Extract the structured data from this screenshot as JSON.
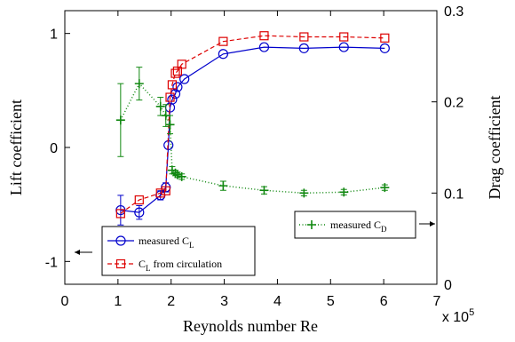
{
  "chart_data": {
    "type": "line",
    "xlabel": "Reynolds number Re",
    "ylabel_left": "Lift coefficient",
    "ylabel_right": "Drag coefficient",
    "x_multiplier_label": "x 10",
    "x_multiplier_exp": "5",
    "xlim": [
      0,
      7
    ],
    "ylim_left": [
      -1.2,
      1.2
    ],
    "ylim_right": [
      0,
      0.3
    ],
    "xticks": [
      "0",
      "1",
      "2",
      "3",
      "4",
      "5",
      "6",
      "7"
    ],
    "yticks_left": [
      "-1",
      "0",
      "1"
    ],
    "yticks_right": [
      "0",
      "0.1",
      "0.2",
      "0.3"
    ],
    "legend_left": {
      "entries": [
        {
          "prefix": "measured C",
          "sub": "L"
        },
        {
          "prefix": "C",
          "sub": "L",
          "suffix": " from circulation"
        }
      ]
    },
    "legend_right": {
      "entries": [
        {
          "prefix": "measured C",
          "sub": "D"
        }
      ]
    },
    "series": [
      {
        "name": "measured C_L",
        "axis": "left",
        "color": "#0000cc",
        "marker": "circle",
        "line": "solid",
        "x": [
          1.05,
          1.4,
          1.8,
          1.9,
          1.95,
          1.98,
          2.02,
          2.08,
          2.12,
          2.25,
          2.98,
          3.75,
          4.5,
          5.25,
          6.02
        ],
        "y": [
          -0.55,
          -0.57,
          -0.42,
          -0.35,
          0.02,
          0.35,
          0.42,
          0.47,
          0.53,
          0.6,
          0.82,
          0.88,
          0.87,
          0.88,
          0.87
        ],
        "yerr": [
          0.13,
          0.06,
          0.04,
          0.04,
          0,
          0,
          0,
          0,
          0,
          0,
          0,
          0,
          0,
          0,
          0
        ]
      },
      {
        "name": "C_L from circulation",
        "axis": "left",
        "color": "#dd0000",
        "marker": "square",
        "line": "dashed",
        "x": [
          1.05,
          1.4,
          1.8,
          1.9,
          1.98,
          2.02,
          2.08,
          2.12,
          2.2,
          2.98,
          3.75,
          4.5,
          5.25,
          6.02
        ],
        "y": [
          -0.58,
          -0.46,
          -0.4,
          -0.38,
          0.44,
          0.55,
          0.65,
          0.67,
          0.73,
          0.93,
          0.98,
          0.97,
          0.97,
          0.96
        ]
      },
      {
        "name": "measured C_D",
        "axis": "right",
        "color": "#118811",
        "marker": "plus",
        "line": "dotted",
        "x": [
          1.05,
          1.4,
          1.8,
          1.9,
          1.98,
          2.02,
          2.08,
          2.12,
          2.2,
          2.98,
          3.75,
          4.5,
          5.25,
          6.02
        ],
        "y": [
          0.18,
          0.22,
          0.195,
          0.185,
          0.175,
          0.125,
          0.122,
          0.12,
          0.118,
          0.108,
          0.103,
          0.1,
          0.101,
          0.106
        ],
        "yerr": [
          0.04,
          0.018,
          0.01,
          0.012,
          0.01,
          0.004,
          0.003,
          0.003,
          0.003,
          0.005,
          0.004,
          0.003,
          0.003,
          0.003
        ]
      }
    ]
  }
}
